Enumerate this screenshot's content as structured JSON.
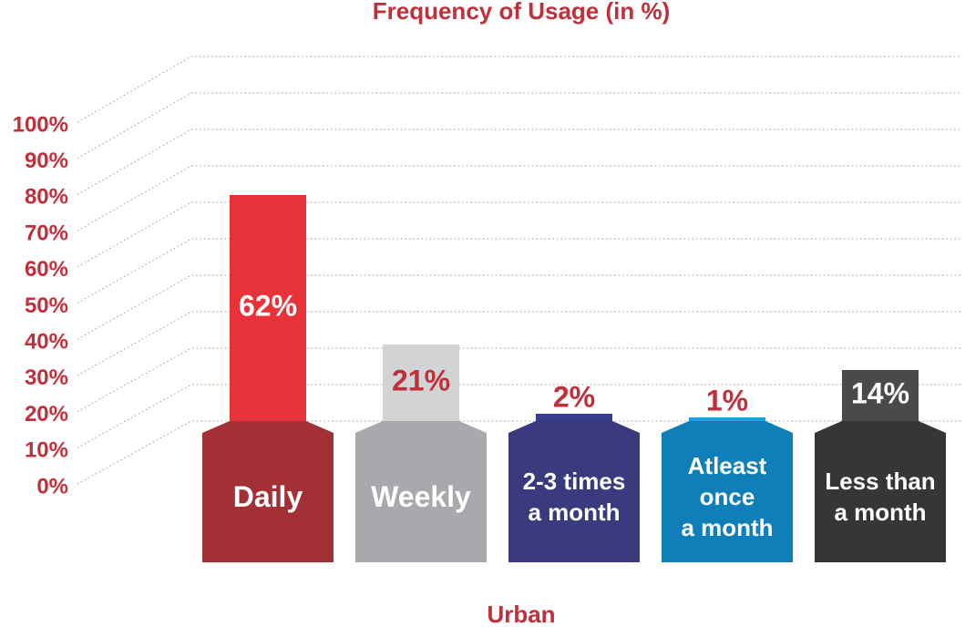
{
  "chart_data": {
    "type": "bar",
    "title": "Frequency of Usage (in %)",
    "x_label": "Urban",
    "categories": [
      "Daily",
      "Weekly",
      "2-3 times\na month",
      "Atleast\nonce\na month",
      "Less than\na month"
    ],
    "values": [
      62,
      21,
      2,
      1,
      14
    ],
    "value_labels": [
      "62%",
      "21%",
      "2%",
      "1%",
      "14%"
    ],
    "colors": [
      "#e8323a",
      "#d2d3d5",
      "#3b3b8f",
      "#1aa3de",
      "#4a4a4a"
    ],
    "base_colors": [
      "#a33034",
      "#a7a9ac",
      "#3a3a7e",
      "#0e7fb8",
      "#363636"
    ],
    "label_colors": [
      "#ffffff",
      "#c0303a",
      "#c0303a",
      "#c0303a",
      "#ffffff"
    ],
    "ylim": [
      0,
      100
    ],
    "yticks": [
      {
        "value": 0,
        "label": "0%"
      },
      {
        "value": 10,
        "label": "10%"
      },
      {
        "value": 20,
        "label": "20%"
      },
      {
        "value": 30,
        "label": "30%"
      },
      {
        "value": 40,
        "label": "40%"
      },
      {
        "value": 50,
        "label": "50%"
      },
      {
        "value": 60,
        "label": "60%"
      },
      {
        "value": 70,
        "label": "70%"
      },
      {
        "value": 80,
        "label": "80%"
      },
      {
        "value": 90,
        "label": "90%"
      },
      {
        "value": 100,
        "label": "100%"
      }
    ],
    "grid": true
  }
}
